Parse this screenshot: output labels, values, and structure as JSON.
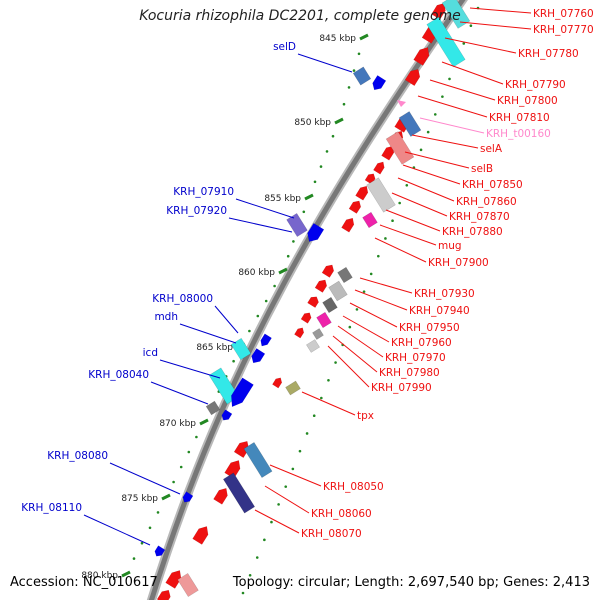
{
  "title": "Kocuria rhizophila DC2201, complete genome",
  "accession": "Accession: NC_010617",
  "topology": "Topology: circular; Length: 2,697,540 bp; Genes: 2,413",
  "colors": {
    "forward_gene": "#ee1111",
    "forward_label": "#ee1111",
    "trna_label": "#ff88cc",
    "reverse_label": "#0000cc",
    "reverse_gene": "#0000ee",
    "scale_tick": "#228822",
    "backbone": "#777777"
  },
  "scale_ticks": [
    {
      "label": "845 kbp"
    },
    {
      "label": "850 kbp"
    },
    {
      "label": "855 kbp"
    },
    {
      "label": "860 kbp"
    },
    {
      "label": "865 kbp"
    },
    {
      "label": "870 kbp"
    },
    {
      "label": "875 kbp"
    },
    {
      "label": "880 kbp"
    }
  ],
  "forward_labels": [
    {
      "text": "KRH_07760",
      "type": "gene"
    },
    {
      "text": "KRH_07770",
      "type": "gene"
    },
    {
      "text": "KRH_07780",
      "type": "gene"
    },
    {
      "text": "KRH_07790",
      "type": "gene"
    },
    {
      "text": "KRH_07800",
      "type": "gene"
    },
    {
      "text": "KRH_07810",
      "type": "gene"
    },
    {
      "text": "KRH_t00160",
      "type": "trna"
    },
    {
      "text": "selA",
      "type": "gene"
    },
    {
      "text": "selB",
      "type": "gene"
    },
    {
      "text": "KRH_07850",
      "type": "gene"
    },
    {
      "text": "KRH_07860",
      "type": "gene"
    },
    {
      "text": "KRH_07870",
      "type": "gene"
    },
    {
      "text": "KRH_07880",
      "type": "gene"
    },
    {
      "text": "mug",
      "type": "gene"
    },
    {
      "text": "KRH_07900",
      "type": "gene"
    },
    {
      "text": "KRH_07930",
      "type": "gene"
    },
    {
      "text": "KRH_07940",
      "type": "gene"
    },
    {
      "text": "KRH_07950",
      "type": "gene"
    },
    {
      "text": "KRH_07960",
      "type": "gene"
    },
    {
      "text": "KRH_07970",
      "type": "gene"
    },
    {
      "text": "KRH_07980",
      "type": "gene"
    },
    {
      "text": "KRH_07990",
      "type": "gene"
    },
    {
      "text": "tpx",
      "type": "gene"
    },
    {
      "text": "KRH_08050",
      "type": "gene"
    },
    {
      "text": "KRH_08060",
      "type": "gene"
    },
    {
      "text": "KRH_08070",
      "type": "gene"
    }
  ],
  "reverse_labels": [
    {
      "text": "selD"
    },
    {
      "text": "KRH_07910"
    },
    {
      "text": "KRH_07920"
    },
    {
      "text": "KRH_08000"
    },
    {
      "text": "mdh"
    },
    {
      "text": "icd"
    },
    {
      "text": "KRH_08040"
    },
    {
      "text": "KRH_08080"
    },
    {
      "text": "KRH_08110"
    }
  ]
}
